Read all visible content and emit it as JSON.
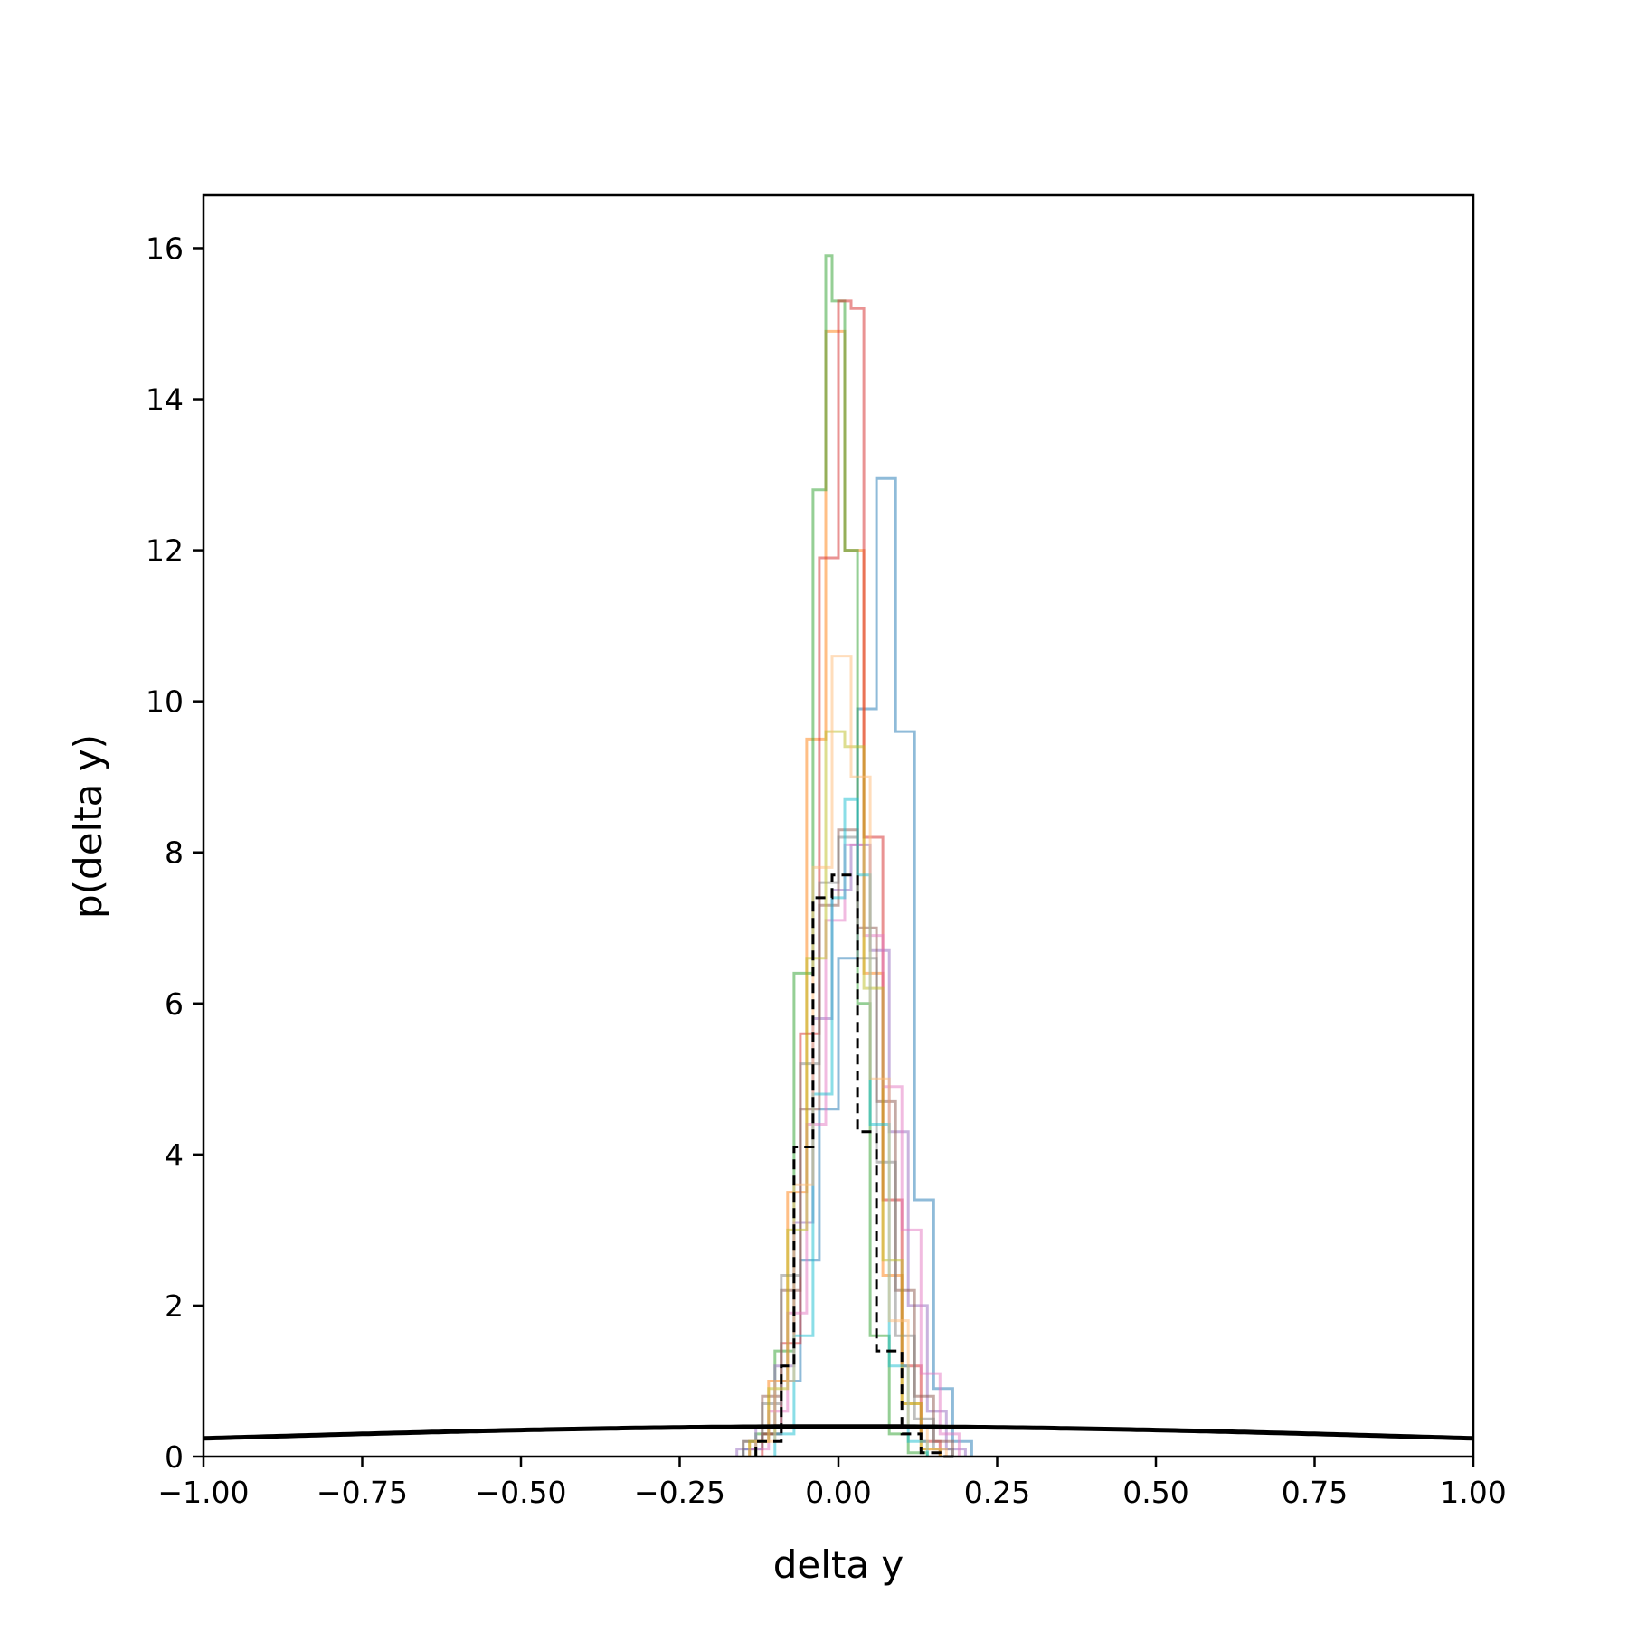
{
  "chart_data": {
    "type": "step-histogram",
    "xlabel": "delta y",
    "ylabel": "p(delta y)",
    "xlim": [
      -1.0,
      1.0
    ],
    "ylim": [
      0,
      16.7
    ],
    "x_ticks": [
      -1.0,
      -0.75,
      -0.5,
      -0.25,
      0.0,
      0.25,
      0.5,
      0.75,
      1.0
    ],
    "x_tick_labels": [
      "−1.00",
      "−0.75",
      "−0.50",
      "−0.25",
      "0.00",
      "0.25",
      "0.50",
      "0.75",
      "1.00"
    ],
    "y_ticks": [
      0,
      2,
      4,
      6,
      8,
      10,
      12,
      14,
      16
    ],
    "y_tick_labels": [
      "0",
      "2",
      "4",
      "6",
      "8",
      "10",
      "12",
      "14",
      "16"
    ],
    "grid": false,
    "legend": "none",
    "series": [
      {
        "color": "#1f77b4",
        "alpha": 0.5,
        "linestyle": "solid",
        "edges": [
          -0.15,
          -0.12,
          -0.09,
          -0.06,
          -0.03,
          0.0,
          0.03,
          0.06,
          0.09,
          0.12,
          0.15,
          0.18,
          0.21
        ],
        "values": [
          0.1,
          0.3,
          1.0,
          2.6,
          4.6,
          6.6,
          9.9,
          12.95,
          9.6,
          3.4,
          0.9,
          0.2
        ]
      },
      {
        "color": "#ff7f0e",
        "alpha": 0.5,
        "linestyle": "solid",
        "edges": [
          -0.14,
          -0.11,
          -0.08,
          -0.05,
          -0.02,
          0.01,
          0.04,
          0.07,
          0.1,
          0.13,
          0.16
        ],
        "values": [
          0.2,
          1.0,
          3.5,
          9.5,
          14.9,
          12.0,
          6.4,
          2.4,
          0.7,
          0.1
        ]
      },
      {
        "color": "#2ca02c",
        "alpha": 0.5,
        "linestyle": "solid",
        "edges": [
          -0.13,
          -0.1,
          -0.07,
          -0.04,
          -0.02,
          -0.01,
          0.01,
          0.03,
          0.05,
          0.08,
          0.11,
          0.14
        ],
        "values": [
          0.3,
          1.4,
          6.4,
          12.8,
          15.9,
          15.3,
          12.0,
          6.0,
          1.6,
          0.3,
          0.05
        ]
      },
      {
        "color": "#d62728",
        "alpha": 0.5,
        "linestyle": "solid",
        "edges": [
          -0.12,
          -0.09,
          -0.06,
          -0.03,
          0.0,
          0.02,
          0.04,
          0.07,
          0.1,
          0.13,
          0.16
        ],
        "values": [
          0.3,
          1.5,
          5.6,
          11.9,
          15.3,
          15.2,
          8.2,
          3.4,
          1.2,
          0.2
        ]
      },
      {
        "color": "#9467bd",
        "alpha": 0.5,
        "linestyle": "solid",
        "edges": [
          -0.16,
          -0.13,
          -0.1,
          -0.07,
          -0.04,
          -0.01,
          0.02,
          0.05,
          0.08,
          0.11,
          0.14,
          0.17,
          0.2
        ],
        "values": [
          0.1,
          0.4,
          1.2,
          3.1,
          5.8,
          7.5,
          8.1,
          6.7,
          4.3,
          2.0,
          0.6,
          0.1
        ]
      },
      {
        "color": "#8c564b",
        "alpha": 0.5,
        "linestyle": "solid",
        "edges": [
          -0.15,
          -0.12,
          -0.09,
          -0.06,
          -0.03,
          0.0,
          0.03,
          0.06,
          0.09,
          0.12,
          0.15,
          0.18
        ],
        "values": [
          0.2,
          0.8,
          2.2,
          4.6,
          7.3,
          8.3,
          7.0,
          4.7,
          2.2,
          0.8,
          0.2
        ]
      },
      {
        "color": "#e377c2",
        "alpha": 0.5,
        "linestyle": "solid",
        "edges": [
          -0.14,
          -0.11,
          -0.08,
          -0.05,
          -0.02,
          0.01,
          0.04,
          0.07,
          0.1,
          0.13,
          0.16,
          0.19
        ],
        "values": [
          0.1,
          0.6,
          1.9,
          4.4,
          7.1,
          8.1,
          6.9,
          4.9,
          3.0,
          1.1,
          0.3
        ]
      },
      {
        "color": "#7f7f7f",
        "alpha": 0.5,
        "linestyle": "solid",
        "edges": [
          -0.15,
          -0.12,
          -0.09,
          -0.06,
          -0.03,
          0.0,
          0.03,
          0.06,
          0.09,
          0.12,
          0.15,
          0.18
        ],
        "values": [
          0.2,
          0.7,
          2.4,
          5.2,
          7.6,
          8.2,
          6.6,
          3.9,
          1.6,
          0.5,
          0.1
        ]
      },
      {
        "color": "#bcbd22",
        "alpha": 0.5,
        "linestyle": "solid",
        "edges": [
          -0.14,
          -0.11,
          -0.08,
          -0.05,
          -0.02,
          0.01,
          0.04,
          0.07,
          0.1,
          0.13,
          0.16
        ],
        "values": [
          0.2,
          0.9,
          3.0,
          6.6,
          9.6,
          9.4,
          6.2,
          2.6,
          0.7,
          0.1
        ]
      },
      {
        "color": "#17becf",
        "alpha": 0.5,
        "linestyle": "solid",
        "edges": [
          -0.1,
          -0.07,
          -0.04,
          -0.01,
          0.01,
          0.03,
          0.05,
          0.08,
          0.11,
          0.14
        ],
        "values": [
          0.3,
          1.6,
          4.8,
          7.4,
          8.7,
          7.7,
          4.4,
          1.2,
          0.2
        ]
      },
      {
        "color": "#ffbb78",
        "alpha": 0.5,
        "linestyle": "solid",
        "edges": [
          -0.13,
          -0.1,
          -0.07,
          -0.04,
          -0.01,
          0.02,
          0.05,
          0.08,
          0.11,
          0.14,
          0.17
        ],
        "values": [
          0.2,
          1.0,
          3.6,
          7.8,
          10.6,
          9.0,
          5.0,
          1.8,
          0.4,
          0.1
        ]
      },
      {
        "color": "#000000",
        "alpha": 1.0,
        "linestyle": "dashed",
        "edges": [
          -0.13,
          -0.09,
          -0.07,
          -0.04,
          -0.01,
          0.03,
          0.06,
          0.1,
          0.13,
          0.16,
          0.19
        ],
        "values": [
          0.2,
          1.2,
          4.1,
          7.4,
          7.7,
          4.3,
          1.4,
          0.3,
          0.05,
          0.0
        ]
      }
    ],
    "reference_curve": {
      "description_only": false,
      "type": "normal-pdf",
      "mean": 0.0,
      "std": 1.0,
      "color": "#000000",
      "linestyle": "solid"
    }
  }
}
